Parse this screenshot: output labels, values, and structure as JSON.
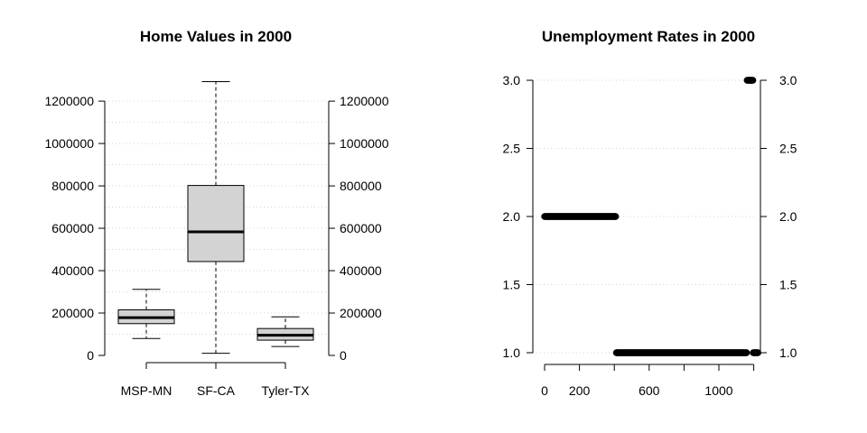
{
  "chart_data": [
    {
      "type": "box",
      "title": "Home Values in 2000",
      "xlabel": "",
      "ylabel": "",
      "categories": [
        "MSP-MN",
        "SF-CA",
        "Tyler-TX"
      ],
      "boxes": [
        {
          "name": "MSP-MN",
          "whisker_low": 80000,
          "q1": 150000,
          "median": 178000,
          "q3": 215000,
          "whisker_high": 312000
        },
        {
          "name": "SF-CA",
          "whisker_low": 10000,
          "q1": 443000,
          "median": 583000,
          "q3": 802000,
          "whisker_high": 1292000
        },
        {
          "name": "Tyler-TX",
          "whisker_low": 42000,
          "q1": 72000,
          "median": 95000,
          "q3": 127000,
          "whisker_high": 182000
        }
      ],
      "ylim": [
        0,
        1300000
      ],
      "yticks": [
        0,
        200000,
        400000,
        600000,
        800000,
        1000000,
        1200000
      ],
      "ytick_labels": [
        "0",
        "200000",
        "400000",
        "600000",
        "800000",
        "1000000",
        "1200000"
      ],
      "grid": true,
      "box_fill": "#d3d3d3",
      "right_axis": true
    },
    {
      "type": "scatter",
      "title": "Unemployment Rates in 2000",
      "xlabel": "",
      "ylabel": "",
      "series": [
        {
          "x_from": 0,
          "x_to": 410,
          "y": 2.0
        },
        {
          "x_from": 412,
          "x_to": 1160,
          "y": 1.0
        },
        {
          "x_from": 1162,
          "x_to": 1195,
          "y": 3.0
        },
        {
          "x_from": 1197,
          "x_to": 1225,
          "y": 1.0
        }
      ],
      "xlim": [
        0,
        1230
      ],
      "ylim": [
        1.0,
        3.0
      ],
      "xticks": [
        0,
        200,
        400,
        600,
        800,
        1000,
        1200
      ],
      "xtick_labels": [
        "0",
        "200",
        "",
        "600",
        "",
        "1000",
        ""
      ],
      "yticks": [
        1.0,
        1.5,
        2.0,
        2.5,
        3.0
      ],
      "ytick_labels": [
        "1.0",
        "1.5",
        "2.0",
        "2.5",
        "3.0"
      ],
      "grid": true,
      "marker_color": "#000000",
      "right_axis": true
    }
  ]
}
